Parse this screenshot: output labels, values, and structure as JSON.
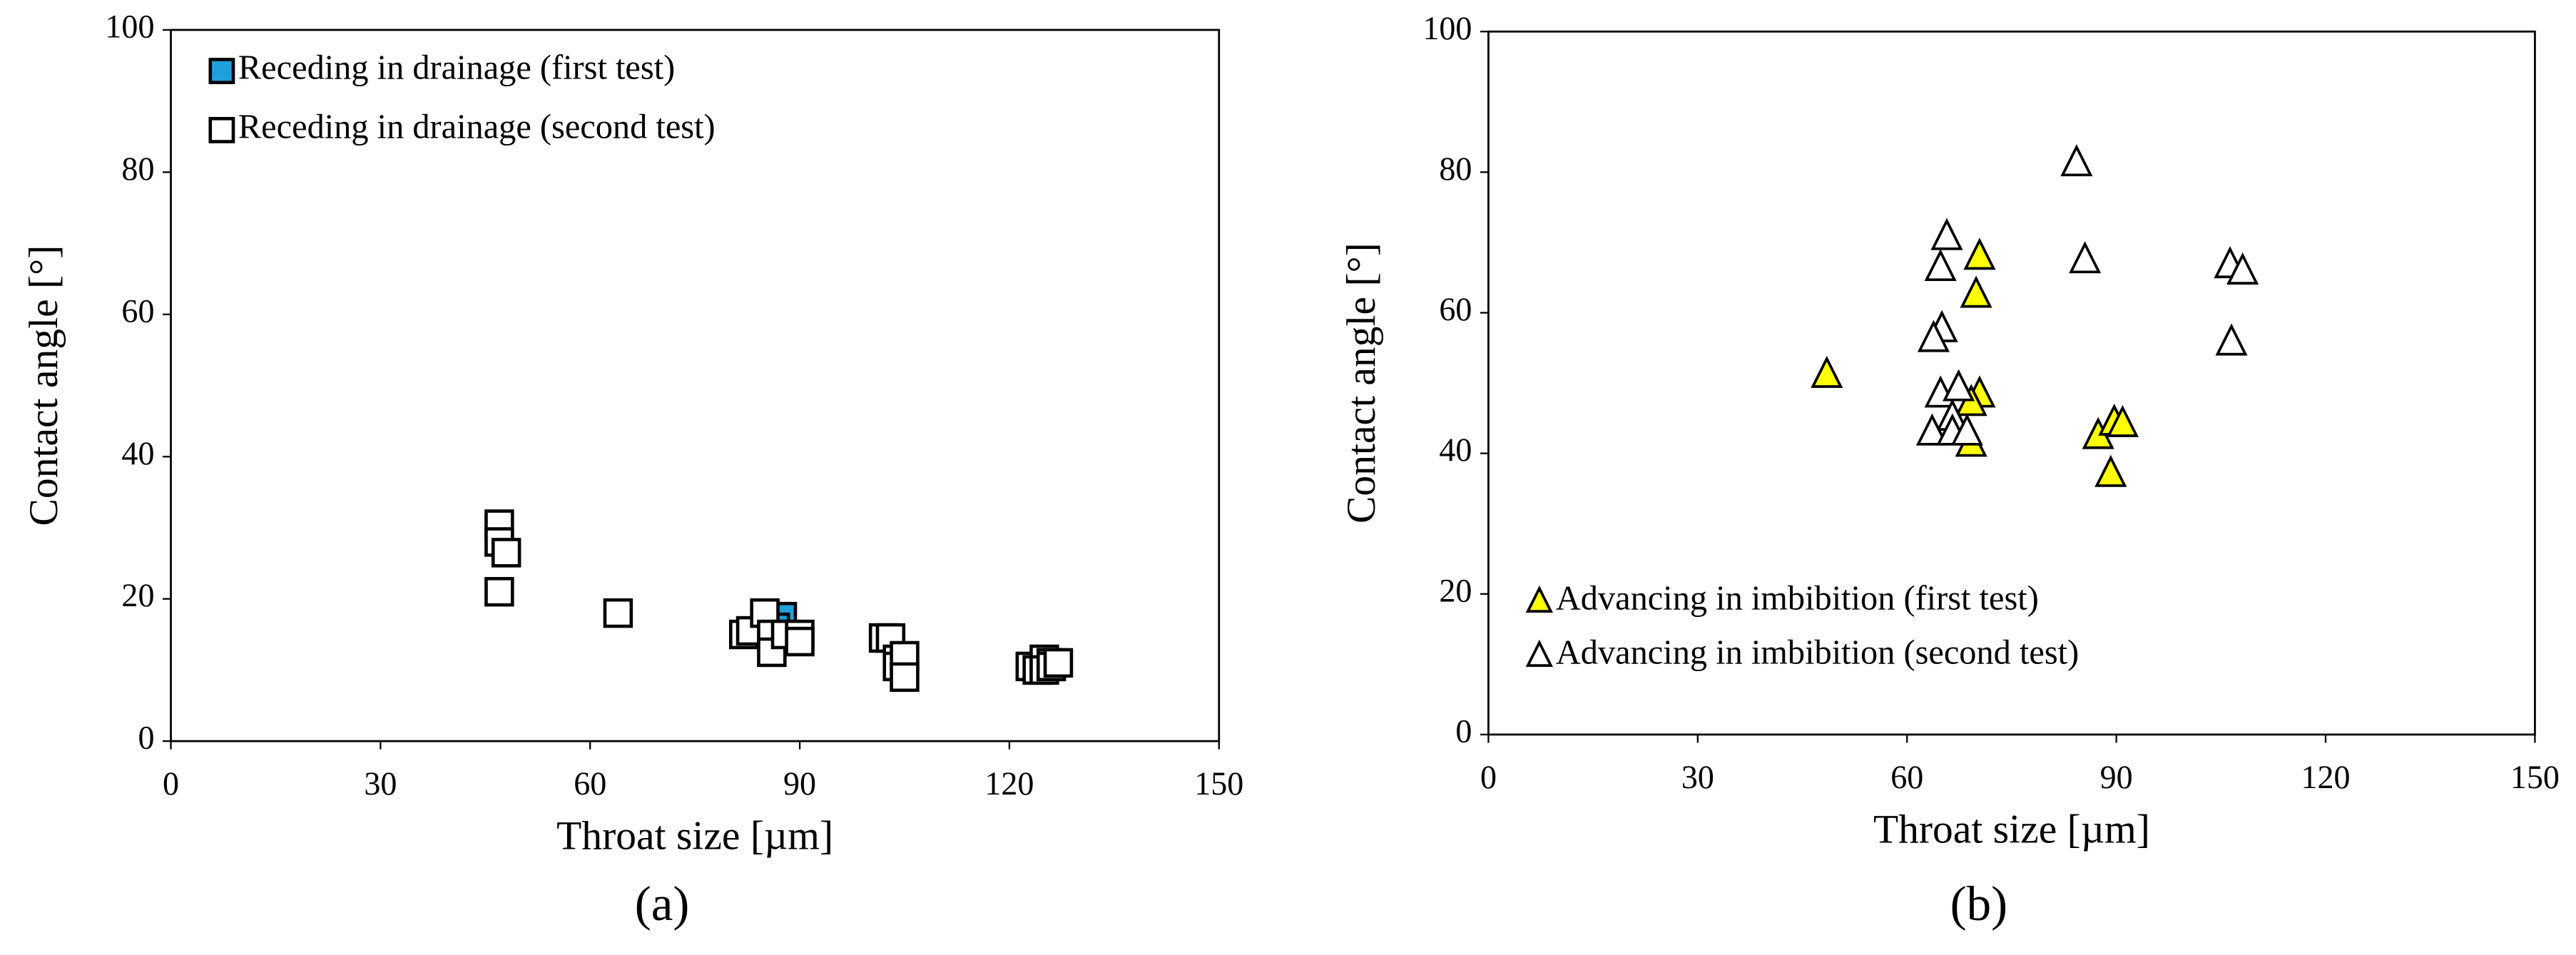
{
  "chart_data": [
    {
      "type": "scatter",
      "caption": "(a)",
      "xlabel": "Throat size [µm]",
      "ylabel": "Contact angle [°]",
      "xlim": [
        0,
        150
      ],
      "ylim": [
        0,
        100
      ],
      "xticks": [
        0,
        30,
        60,
        90,
        120,
        150
      ],
      "yticks": [
        0,
        20,
        40,
        60,
        80,
        100
      ],
      "legend": "upper left",
      "grid": false,
      "series": [
        {
          "name": "Receding in drainage (first test)",
          "marker": "square",
          "color": "#1f9fdc",
          "edgecolor": "#000000",
          "x": [
            87.5,
            86.5
          ],
          "values": [
            17.5,
            16
          ]
        },
        {
          "name": "Receding in drainage (second test)",
          "marker": "square",
          "color": "#ffffff",
          "edgecolor": "#000000",
          "x": [
            47,
            47,
            48,
            47,
            64,
            82,
            83,
            85,
            86,
            86,
            88,
            90,
            90,
            102,
            103,
            104,
            104,
            105,
            105,
            123,
            124,
            125,
            125,
            126,
            126,
            127
          ],
          "values": [
            30.5,
            28,
            26.5,
            21,
            18,
            15,
            15.5,
            18,
            15,
            12.5,
            15,
            15,
            14,
            14.5,
            14.5,
            11.5,
            10.5,
            12,
            9,
            10.5,
            10,
            11.5,
            10,
            11,
            10.5,
            11
          ]
        }
      ]
    },
    {
      "type": "scatter",
      "caption": "(b)",
      "xlabel": "Throat size [µm]",
      "ylabel": "Contact angle [°]",
      "xlim": [
        0,
        150
      ],
      "ylim": [
        0,
        100
      ],
      "xticks": [
        0,
        30,
        60,
        90,
        120,
        150
      ],
      "yticks": [
        0,
        20,
        40,
        60,
        80,
        100
      ],
      "legend": "lower left",
      "grid": false,
      "series": [
        {
          "name": "Advancing in imbibition (first test)",
          "marker": "triangle",
          "color": "#ffff00",
          "edgecolor": "#000000",
          "x": [
            48.5,
            70.4,
            69.9,
            70.4,
            69.2,
            69.2,
            87.4,
            89.2,
            89.7,
            90.9
          ],
          "values": [
            51.2,
            68,
            62.6,
            48.4,
            47.2,
            41.4,
            42.5,
            37.1,
            44.4,
            44.2
          ]
        },
        {
          "name": "Advancing in imbibition (second test)",
          "marker": "triangle",
          "color": "#ffffff",
          "edgecolor": "#000000",
          "x": [
            84.3,
            65.7,
            64.8,
            85.5,
            65,
            63.8,
            106.3,
            108.1,
            106.5,
            64.8,
            67.4,
            66.5,
            63.6,
            66.5,
            68.6
          ],
          "values": [
            81.3,
            70.8,
            66.4,
            67.5,
            57.7,
            56.3,
            66.8,
            65.9,
            55.8,
            48.4,
            49.3,
            45.1,
            43,
            43,
            43
          ]
        }
      ]
    }
  ]
}
